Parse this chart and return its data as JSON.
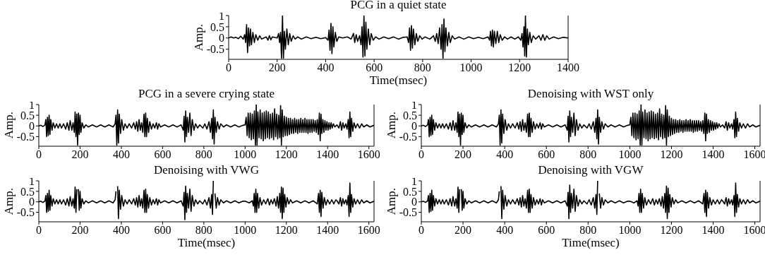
{
  "chart_data": [
    {
      "type": "line",
      "title": "PCG in a quiet state",
      "xlabel": "Time(msec)",
      "ylabel": "Amp.",
      "xlim": [
        0,
        1400
      ],
      "xticks": [
        0,
        200,
        400,
        600,
        800,
        1000,
        1200,
        1400
      ],
      "ylim": [
        -0.95,
        1
      ],
      "yticks": [
        -0.5,
        0,
        0.5,
        1
      ],
      "series": [
        {
          "color": "#000000",
          "x": [
            0,
            10,
            20,
            30,
            40,
            50,
            60,
            66,
            70,
            74,
            78,
            82,
            86,
            90,
            94,
            100,
            106,
            112,
            120,
            128,
            136,
            145,
            155,
            162,
            168,
            174,
            180,
            200,
            206,
            210,
            214,
            218,
            222,
            226,
            230,
            234,
            240,
            246,
            252,
            258,
            266,
            274,
            285,
            300,
            320,
            340,
            360,
            380,
            400,
            410,
            414,
            418,
            422,
            426,
            430,
            434,
            440,
            446,
            454,
            470,
            490,
            505,
            515,
            520,
            526,
            532,
            540,
            546,
            550,
            554,
            558,
            562,
            566,
            570,
            576,
            582,
            588,
            596,
            606,
            620,
            640,
            660,
            680,
            700,
            720,
            736,
            742,
            746,
            750,
            754,
            758,
            762,
            768,
            774,
            780,
            788,
            798,
            810,
            830,
            845,
            852,
            858,
            864,
            870,
            876,
            880,
            884,
            888,
            892,
            896,
            902,
            908,
            914,
            922,
            932,
            950,
            970,
            990,
            1010,
            1030,
            1050,
            1070,
            1076,
            1080,
            1084,
            1088,
            1092,
            1096,
            1102,
            1108,
            1114,
            1120,
            1128,
            1138,
            1150,
            1165,
            1180,
            1195,
            1205,
            1210,
            1214,
            1218,
            1221,
            1224,
            1228,
            1232,
            1236,
            1242,
            1248,
            1256,
            1266,
            1280,
            1288,
            1296,
            1304,
            1312,
            1322,
            1340,
            1360,
            1380,
            1400
          ],
          "values": [
            0,
            0.05,
            0,
            0.03,
            -0.03,
            0.08,
            -0.05,
            0.15,
            -0.2,
            0.6,
            -0.65,
            0.45,
            -0.35,
            0.4,
            -0.3,
            0.25,
            -0.2,
            0.15,
            -0.1,
            0.1,
            -0.05,
            0,
            0.05,
            -0.1,
            0.1,
            -0.08,
            0.05,
            0,
            0.2,
            -0.2,
            0.25,
            -0.9,
            1,
            -0.9,
            0.3,
            -0.5,
            0.4,
            -0.3,
            0.2,
            -0.15,
            0.1,
            -0.05,
            0.05,
            -0.05,
            0.05,
            -0.03,
            0.03,
            -0.03,
            0.02,
            -0.1,
            0.35,
            -0.55,
            0.65,
            -0.7,
            0.5,
            -0.4,
            0.25,
            -0.15,
            0.05,
            0,
            0.05,
            -0.05,
            0.2,
            -0.2,
            0.15,
            -0.15,
            0.1,
            -0.3,
            0.5,
            -0.85,
            1,
            -0.8,
            0.7,
            -0.5,
            0.4,
            -0.3,
            0.2,
            -0.1,
            0.05,
            -0.05,
            0.05,
            -0.03,
            0.05,
            -0.05,
            0.03,
            0.05,
            -0.2,
            0.45,
            -0.55,
            0.55,
            -0.45,
            0.4,
            -0.3,
            0.2,
            -0.15,
            0.1,
            -0.05,
            0.05,
            -0.05,
            0.1,
            -0.15,
            0.2,
            -0.25,
            0.45,
            -0.5,
            0.6,
            -0.9,
            0.85,
            -0.6,
            0.45,
            -0.35,
            0.25,
            -0.2,
            0.1,
            -0.05,
            0.05,
            -0.05,
            0.05,
            -0.03,
            0.03,
            -0.03,
            0.05,
            -0.1,
            0.3,
            -0.35,
            0.35,
            -0.4,
            0.3,
            -0.25,
            0.3,
            -0.2,
            0.15,
            -0.1,
            0.05,
            -0.05,
            0.05,
            -0.05,
            0.05,
            -0.1,
            0.2,
            -0.4,
            0.5,
            -0.8,
            1,
            -0.85,
            0.4,
            -0.3,
            0.25,
            -0.2,
            0.1,
            -0.05,
            0.1,
            -0.1,
            0.15,
            -0.1,
            0.1,
            -0.05,
            0.05,
            -0.03,
            0.03,
            0
          ]
        }
      ]
    },
    {
      "type": "line",
      "title": "PCG in a severe crying state",
      "ylabel": "Amp.",
      "xlim": [
        0,
        1625
      ],
      "xticks": [
        0,
        200,
        400,
        600,
        800,
        1000,
        1200,
        1400,
        1600
      ],
      "ylim": [
        -0.95,
        1
      ],
      "yticks": [
        -0.5,
        0,
        0.5,
        1
      ],
      "series": [
        {
          "color": "#000000",
          "x": [
            0,
            10,
            20,
            30,
            34,
            38,
            42,
            46,
            50,
            54,
            58,
            64,
            70,
            78,
            86,
            94,
            102,
            110,
            120,
            130,
            138,
            146,
            152,
            160,
            166,
            172,
            176,
            180,
            184,
            188,
            192,
            196,
            200,
            204,
            210,
            218,
            228,
            240,
            260,
            280,
            300,
            320,
            340,
            360,
            370,
            374,
            378,
            382,
            386,
            390,
            396,
            402,
            410,
            418,
            428,
            438,
            450,
            460,
            468,
            474,
            480,
            486,
            492,
            498,
            504,
            510,
            514,
            518,
            522,
            526,
            532,
            538,
            546,
            554,
            562,
            570,
            576,
            582,
            590,
            610,
            630,
            650,
            670,
            690,
            700,
            704,
            708,
            712,
            716,
            720,
            726,
            732,
            738,
            744,
            752,
            760,
            770,
            780,
            795,
            805,
            815,
            825,
            832,
            838,
            842,
            846,
            850,
            854,
            860,
            866,
            874,
            882,
            895,
            910,
            930,
            950,
            970,
            990,
            1000,
            1005,
            1010,
            1015,
            1020,
            1025,
            1030,
            1035,
            1040,
            1045,
            1050,
            1054,
            1058,
            1062,
            1068,
            1073,
            1078,
            1083,
            1088,
            1093,
            1098,
            1103,
            1108,
            1113,
            1118,
            1123,
            1128,
            1133,
            1138,
            1143,
            1148,
            1153,
            1158,
            1163,
            1168,
            1172,
            1176,
            1180,
            1185,
            1190,
            1195,
            1200,
            1205,
            1210,
            1215,
            1220,
            1225,
            1230,
            1235,
            1240,
            1245,
            1250,
            1255,
            1260,
            1265,
            1270,
            1275,
            1280,
            1285,
            1290,
            1295,
            1300,
            1305,
            1310,
            1315,
            1320,
            1325,
            1330,
            1335,
            1340,
            1345,
            1350,
            1355,
            1360,
            1364,
            1368,
            1372,
            1377,
            1382,
            1387,
            1392,
            1397,
            1402,
            1407,
            1412,
            1417,
            1422,
            1428,
            1435,
            1445,
            1455,
            1462,
            1468,
            1474,
            1480,
            1488,
            1494,
            1500,
            1504,
            1508,
            1512,
            1516,
            1522,
            1528,
            1536,
            1545,
            1555,
            1565,
            1575,
            1590,
            1605,
            1625
          ],
          "values": [
            0,
            0.03,
            -0.03,
            0.05,
            0.3,
            -0.5,
            0.4,
            -0.45,
            0.5,
            -0.4,
            0.3,
            -0.2,
            0.15,
            -0.1,
            0.1,
            -0.1,
            0.1,
            -0.1,
            0.1,
            -0.15,
            0.15,
            -0.2,
            0.25,
            -0.2,
            0.15,
            -0.3,
            0.65,
            -0.5,
            0.55,
            -0.9,
            0.6,
            -0.4,
            0.5,
            -0.3,
            0.15,
            -0.1,
            0.05,
            -0.05,
            0.05,
            -0.05,
            0.05,
            -0.05,
            0.05,
            -0.05,
            0.1,
            0.5,
            -0.9,
            0.75,
            -0.8,
            0.55,
            -0.35,
            0.3,
            -0.2,
            0.1,
            -0.1,
            0.1,
            -0.1,
            0.15,
            -0.15,
            0.2,
            -0.25,
            0.3,
            -0.2,
            0.15,
            -0.3,
            0.55,
            -0.5,
            0.6,
            -0.5,
            0.35,
            -0.3,
            0.2,
            -0.15,
            0.1,
            -0.1,
            0.15,
            -0.15,
            0.1,
            -0.05,
            0.05,
            -0.05,
            0.05,
            -0.05,
            0.05,
            -0.2,
            0.45,
            -0.75,
            0.7,
            -0.5,
            0.4,
            -0.3,
            0.6,
            -0.45,
            0.3,
            -0.2,
            0.1,
            -0.1,
            0.05,
            -0.1,
            0.1,
            -0.15,
            0.2,
            -0.3,
            0.35,
            -0.6,
            0.75,
            -0.85,
            0.4,
            -0.3,
            0.2,
            -0.15,
            0.1,
            -0.05,
            0.05,
            -0.05,
            0.05,
            -0.05,
            0.03,
            0.05,
            0.4,
            -0.45,
            0.6,
            -0.55,
            0.6,
            -0.65,
            0.55,
            -0.6,
            0.7,
            -0.9,
            1,
            -0.9,
            0.65,
            -0.55,
            0.75,
            -0.6,
            0.6,
            -0.7,
            0.65,
            -0.6,
            0.7,
            -0.55,
            0.65,
            -0.6,
            0.55,
            -0.55,
            0.6,
            -0.65,
            0.8,
            -0.5,
            0.55,
            -0.6,
            0.5,
            -0.55,
            0.95,
            -0.9,
            0.75,
            -0.5,
            0.45,
            -0.45,
            0.4,
            -0.45,
            0.35,
            -0.4,
            0.35,
            -0.35,
            0.3,
            -0.35,
            0.35,
            -0.3,
            0.3,
            -0.35,
            0.3,
            -0.3,
            0.35,
            -0.3,
            0.3,
            -0.3,
            0.35,
            -0.3,
            0.3,
            -0.35,
            0.3,
            -0.3,
            0.3,
            -0.3,
            0.3,
            -0.25,
            0.25,
            -0.3,
            0.3,
            -0.4,
            0.6,
            -0.7,
            0.55,
            -0.35,
            0.3,
            -0.3,
            0.25,
            -0.2,
            0.2,
            -0.2,
            0.15,
            -0.15,
            0.15,
            -0.1,
            0.1,
            -0.05,
            0.05,
            -0.1,
            0.2,
            -0.2,
            0.15,
            -0.1,
            0.1,
            -0.15,
            0.3,
            -0.55,
            0.65,
            -0.5,
            0.35,
            -0.25,
            0.15,
            -0.1,
            0.1,
            -0.1,
            0.1,
            -0.05,
            0.05,
            -0.05,
            0.03
          ]
        }
      ]
    },
    {
      "type": "line",
      "title": "Denoising with WST only",
      "ylabel": "Amp.",
      "xlim": [
        0,
        1625
      ],
      "xticks": [
        0,
        200,
        400,
        600,
        800,
        1000,
        1200,
        1400,
        1600
      ],
      "ylim": [
        -0.95,
        1
      ],
      "yticks": [
        -0.5,
        0,
        0.5,
        1
      ],
      "series": [
        {
          "color": "#000000",
          "x": [
            0,
            10,
            20,
            30,
            34,
            38,
            42,
            46,
            50,
            54,
            58,
            64,
            70,
            78,
            86,
            94,
            102,
            110,
            120,
            130,
            138,
            146,
            152,
            160,
            166,
            172,
            176,
            180,
            184,
            188,
            192,
            196,
            200,
            204,
            210,
            218,
            228,
            240,
            260,
            280,
            300,
            320,
            340,
            360,
            370,
            374,
            378,
            382,
            386,
            390,
            396,
            402,
            410,
            418,
            428,
            438,
            450,
            460,
            468,
            474,
            480,
            486,
            492,
            498,
            504,
            510,
            514,
            518,
            522,
            526,
            532,
            538,
            546,
            554,
            562,
            570,
            576,
            582,
            590,
            610,
            630,
            650,
            670,
            690,
            700,
            704,
            708,
            712,
            716,
            720,
            726,
            732,
            738,
            744,
            752,
            760,
            770,
            780,
            795,
            805,
            815,
            825,
            832,
            838,
            842,
            846,
            850,
            854,
            860,
            866,
            874,
            882,
            895,
            910,
            930,
            950,
            970,
            990,
            1000,
            1005,
            1010,
            1015,
            1020,
            1025,
            1030,
            1035,
            1040,
            1045,
            1050,
            1054,
            1058,
            1062,
            1068,
            1073,
            1078,
            1083,
            1088,
            1093,
            1098,
            1103,
            1108,
            1113,
            1118,
            1123,
            1128,
            1133,
            1138,
            1143,
            1148,
            1153,
            1158,
            1163,
            1168,
            1172,
            1176,
            1180,
            1185,
            1190,
            1195,
            1200,
            1205,
            1210,
            1215,
            1220,
            1225,
            1230,
            1235,
            1240,
            1245,
            1250,
            1255,
            1260,
            1265,
            1270,
            1275,
            1280,
            1285,
            1290,
            1295,
            1300,
            1305,
            1310,
            1315,
            1320,
            1325,
            1330,
            1335,
            1340,
            1345,
            1350,
            1355,
            1360,
            1364,
            1368,
            1372,
            1377,
            1382,
            1387,
            1392,
            1397,
            1402,
            1407,
            1412,
            1417,
            1422,
            1428,
            1435,
            1445,
            1455,
            1462,
            1468,
            1474,
            1480,
            1488,
            1494,
            1500,
            1504,
            1508,
            1512,
            1516,
            1522,
            1528,
            1536,
            1545,
            1555,
            1565,
            1575,
            1590,
            1605,
            1625
          ],
          "values": [
            0,
            0.03,
            -0.03,
            0.05,
            0.3,
            -0.5,
            0.4,
            -0.45,
            0.5,
            -0.4,
            0.3,
            -0.2,
            0.15,
            -0.1,
            0.1,
            -0.1,
            0.1,
            -0.1,
            0.1,
            -0.15,
            0.15,
            -0.2,
            0.25,
            -0.2,
            0.15,
            -0.3,
            0.65,
            -0.5,
            0.55,
            -0.9,
            0.6,
            -0.4,
            0.5,
            -0.3,
            0.15,
            -0.1,
            0.05,
            -0.05,
            0.05,
            -0.05,
            0.05,
            -0.05,
            0.05,
            -0.05,
            0.1,
            0.5,
            -0.9,
            0.75,
            -0.8,
            0.55,
            -0.35,
            0.3,
            -0.2,
            0.1,
            -0.1,
            0.1,
            -0.1,
            0.15,
            -0.15,
            0.2,
            -0.25,
            0.3,
            -0.2,
            0.15,
            -0.3,
            0.55,
            -0.5,
            0.6,
            -0.5,
            0.35,
            -0.3,
            0.2,
            -0.15,
            0.1,
            -0.1,
            0.15,
            -0.15,
            0.1,
            -0.05,
            0.05,
            -0.05,
            0.05,
            -0.05,
            0.05,
            -0.2,
            0.45,
            -0.75,
            0.7,
            -0.5,
            0.4,
            -0.3,
            0.6,
            -0.45,
            0.3,
            -0.2,
            0.1,
            -0.1,
            0.05,
            -0.1,
            0.1,
            -0.15,
            0.2,
            -0.3,
            0.35,
            -0.6,
            0.75,
            -0.85,
            0.4,
            -0.3,
            0.2,
            -0.15,
            0.1,
            -0.05,
            0.05,
            -0.05,
            0.05,
            -0.05,
            0.03,
            0.05,
            0.4,
            -0.45,
            0.6,
            -0.55,
            0.6,
            -0.65,
            0.55,
            -0.6,
            0.7,
            -0.9,
            1,
            -0.9,
            0.65,
            -0.55,
            0.75,
            -0.6,
            0.6,
            -0.7,
            0.65,
            -0.6,
            0.7,
            -0.55,
            0.65,
            -0.6,
            0.55,
            -0.55,
            0.6,
            -0.65,
            0.8,
            -0.5,
            0.55,
            -0.6,
            0.5,
            -0.55,
            0.95,
            -0.9,
            0.75,
            -0.5,
            0.45,
            -0.45,
            0.35,
            -0.4,
            0.3,
            -0.35,
            0.3,
            -0.3,
            0.25,
            -0.3,
            0.3,
            -0.25,
            0.25,
            -0.3,
            0.25,
            -0.25,
            0.3,
            -0.25,
            0.25,
            -0.25,
            0.3,
            -0.25,
            0.25,
            -0.3,
            0.25,
            -0.25,
            0.25,
            -0.25,
            0.25,
            -0.2,
            0.2,
            -0.25,
            0.25,
            -0.35,
            0.6,
            -0.7,
            0.55,
            -0.35,
            0.3,
            -0.3,
            0.25,
            -0.2,
            0.2,
            -0.2,
            0.15,
            -0.15,
            0.15,
            -0.1,
            0.1,
            -0.05,
            0.05,
            -0.1,
            0.2,
            -0.2,
            0.15,
            -0.1,
            0.1,
            -0.15,
            0.3,
            -0.55,
            0.65,
            -0.5,
            0.35,
            -0.25,
            0.15,
            -0.1,
            0.1,
            -0.1,
            0.1,
            -0.05,
            0.05,
            -0.05,
            0.03
          ]
        }
      ]
    },
    {
      "type": "line",
      "title": "Denoising with VWG",
      "xlabel": "Time(msec)",
      "ylabel": "Amp.",
      "xlim": [
        0,
        1625
      ],
      "xticks": [
        0,
        200,
        400,
        600,
        800,
        1000,
        1200,
        1400,
        1600
      ],
      "ylim": [
        -0.95,
        1
      ],
      "yticks": [
        -0.5,
        0,
        0.5,
        1
      ],
      "series": [
        {
          "color": "#000000",
          "x": [
            0,
            10,
            20,
            30,
            34,
            38,
            42,
            46,
            50,
            54,
            58,
            64,
            70,
            78,
            86,
            94,
            102,
            110,
            120,
            130,
            138,
            146,
            152,
            160,
            166,
            172,
            176,
            180,
            184,
            188,
            192,
            196,
            200,
            204,
            210,
            218,
            228,
            240,
            260,
            280,
            300,
            320,
            340,
            360,
            370,
            374,
            378,
            382,
            386,
            390,
            396,
            402,
            410,
            418,
            428,
            438,
            450,
            460,
            468,
            474,
            480,
            486,
            492,
            498,
            504,
            510,
            514,
            518,
            522,
            526,
            532,
            538,
            546,
            554,
            562,
            570,
            576,
            582,
            590,
            610,
            630,
            650,
            670,
            690,
            700,
            704,
            708,
            712,
            716,
            720,
            726,
            732,
            738,
            744,
            752,
            760,
            770,
            780,
            795,
            805,
            815,
            825,
            832,
            838,
            842,
            846,
            850,
            854,
            860,
            866,
            874,
            882,
            895,
            910,
            930,
            950,
            970,
            990,
            1000,
            1020,
            1035,
            1040,
            1044,
            1048,
            1052,
            1056,
            1060,
            1066,
            1072,
            1080,
            1090,
            1100,
            1110,
            1118,
            1126,
            1134,
            1142,
            1150,
            1156,
            1162,
            1168,
            1172,
            1176,
            1180,
            1184,
            1188,
            1192,
            1198,
            1204,
            1212,
            1220,
            1230,
            1250,
            1270,
            1290,
            1310,
            1330,
            1350,
            1356,
            1360,
            1364,
            1368,
            1372,
            1378,
            1384,
            1392,
            1400,
            1410,
            1420,
            1430,
            1440,
            1445,
            1455,
            1462,
            1468,
            1474,
            1480,
            1488,
            1494,
            1500,
            1504,
            1508,
            1512,
            1516,
            1522,
            1528,
            1536,
            1545,
            1555,
            1565,
            1575,
            1590,
            1605,
            1625
          ],
          "values": [
            0,
            0.03,
            -0.03,
            0.05,
            0.3,
            -0.5,
            0.4,
            -0.45,
            0.55,
            -0.4,
            0.3,
            -0.2,
            0.15,
            -0.1,
            0.1,
            -0.1,
            0.1,
            -0.1,
            0.1,
            -0.15,
            0.15,
            -0.2,
            0.25,
            -0.2,
            0.15,
            -0.3,
            0.7,
            -0.5,
            0.6,
            null,
            0.6,
            -0.4,
            0.5,
            -0.3,
            0.15,
            -0.1,
            0.05,
            -0.05,
            0.05,
            -0.05,
            0.05,
            -0.05,
            0.05,
            -0.05,
            0.1,
            0.5,
            null,
            0.75,
            -0.8,
            0.55,
            -0.35,
            0.3,
            -0.2,
            0.1,
            -0.1,
            0.1,
            -0.1,
            0.15,
            -0.15,
            0.2,
            -0.25,
            0.3,
            -0.2,
            0.15,
            -0.3,
            0.55,
            -0.5,
            0.6,
            -0.5,
            0.35,
            -0.3,
            0.2,
            -0.15,
            0.1,
            -0.1,
            0.15,
            -0.15,
            0.1,
            -0.05,
            0.05,
            -0.05,
            0.05,
            -0.05,
            0.05,
            -0.2,
            0.45,
            -0.85,
            0.75,
            -0.5,
            0.4,
            -0.3,
            0.6,
            -0.45,
            0.3,
            -0.2,
            0.1,
            -0.1,
            0.05,
            -0.1,
            0.1,
            -0.15,
            0.2,
            -0.3,
            0.35,
            -0.6,
            1,
            null,
            0.4,
            -0.3,
            0.2,
            -0.15,
            0.1,
            -0.05,
            0.05,
            -0.05,
            0.05,
            -0.05,
            0.03,
            0.03,
            -0.05,
            0.05,
            -0.2,
            0.4,
            -0.5,
            0.6,
            -0.5,
            0.4,
            -0.3,
            0.2,
            -0.15,
            0.1,
            -0.1,
            0.15,
            -0.15,
            0.1,
            -0.1,
            0.15,
            -0.2,
            0.25,
            -0.3,
            0.4,
            -0.5,
            0.7,
            -0.8,
            0.65,
            -0.5,
            0.35,
            -0.25,
            0.2,
            -0.1,
            0.1,
            -0.05,
            0.05,
            -0.05,
            0.05,
            -0.05,
            0.05,
            -0.1,
            0.4,
            -0.5,
            0.55,
            -0.7,
            0.45,
            -0.3,
            0.2,
            -0.15,
            0.1,
            -0.1,
            0.1,
            -0.1,
            0.1,
            0.05,
            -0.1,
            0.2,
            -0.2,
            0.15,
            -0.1,
            0.1,
            -0.15,
            0.3,
            -0.7,
            0.9,
            -0.5,
            0.35,
            -0.25,
            0.15,
            -0.1,
            0.1,
            -0.1,
            0.1,
            -0.05,
            0.05,
            -0.05,
            0.03
          ]
        }
      ]
    },
    {
      "type": "line",
      "title": "Denoising with VGW",
      "xlabel": "Time(msec)",
      "ylabel": "Amp.",
      "xlim": [
        0,
        1625
      ],
      "xticks": [
        0,
        200,
        400,
        600,
        800,
        1000,
        1200,
        1400,
        1600
      ],
      "ylim": [
        -0.95,
        1
      ],
      "yticks": [
        -0.5,
        0,
        0.5,
        1
      ],
      "series": [
        {
          "color": "#000000",
          "x": [
            0,
            10,
            20,
            30,
            34,
            38,
            42,
            46,
            50,
            54,
            58,
            64,
            70,
            78,
            86,
            94,
            102,
            110,
            120,
            130,
            138,
            146,
            152,
            160,
            166,
            172,
            176,
            180,
            184,
            188,
            192,
            196,
            200,
            204,
            210,
            218,
            228,
            240,
            260,
            280,
            300,
            320,
            340,
            360,
            370,
            374,
            378,
            382,
            386,
            390,
            396,
            402,
            410,
            418,
            428,
            438,
            450,
            460,
            468,
            474,
            480,
            486,
            492,
            498,
            504,
            510,
            514,
            518,
            522,
            526,
            532,
            538,
            546,
            554,
            562,
            570,
            576,
            582,
            590,
            610,
            630,
            650,
            670,
            690,
            700,
            704,
            708,
            712,
            716,
            720,
            726,
            732,
            738,
            744,
            752,
            760,
            770,
            780,
            795,
            805,
            815,
            825,
            832,
            838,
            842,
            846,
            850,
            854,
            860,
            866,
            874,
            882,
            895,
            910,
            930,
            950,
            970,
            990,
            1000,
            1020,
            1035,
            1040,
            1044,
            1048,
            1052,
            1056,
            1060,
            1066,
            1072,
            1080,
            1090,
            1100,
            1110,
            1118,
            1126,
            1134,
            1142,
            1150,
            1156,
            1162,
            1168,
            1172,
            1176,
            1180,
            1184,
            1188,
            1192,
            1198,
            1204,
            1212,
            1220,
            1230,
            1250,
            1270,
            1290,
            1310,
            1330,
            1350,
            1356,
            1360,
            1364,
            1368,
            1372,
            1378,
            1384,
            1392,
            1400,
            1410,
            1420,
            1430,
            1440,
            1445,
            1455,
            1462,
            1468,
            1474,
            1480,
            1488,
            1494,
            1500,
            1504,
            1508,
            1512,
            1516,
            1522,
            1528,
            1536,
            1545,
            1555,
            1565,
            1575,
            1590,
            1605,
            1625
          ],
          "values": [
            0,
            0.03,
            -0.03,
            0.05,
            0.3,
            -0.5,
            0.4,
            -0.45,
            0.55,
            -0.4,
            0.3,
            -0.2,
            0.15,
            -0.1,
            0.1,
            -0.1,
            0.1,
            -0.1,
            0.1,
            -0.15,
            0.15,
            -0.2,
            0.25,
            -0.2,
            0.15,
            -0.3,
            0.7,
            -0.5,
            0.6,
            null,
            0.6,
            -0.4,
            0.5,
            -0.3,
            0.15,
            -0.1,
            0.05,
            -0.05,
            0.05,
            -0.05,
            0.05,
            -0.05,
            0.05,
            -0.05,
            0.1,
            0.5,
            null,
            0.75,
            -0.8,
            0.55,
            -0.35,
            0.3,
            -0.2,
            0.1,
            -0.1,
            0.1,
            -0.1,
            0.15,
            -0.15,
            0.2,
            -0.25,
            0.3,
            -0.2,
            0.15,
            -0.3,
            0.55,
            -0.5,
            0.6,
            -0.5,
            0.35,
            -0.3,
            0.2,
            -0.15,
            0.1,
            -0.1,
            0.15,
            -0.15,
            0.1,
            -0.05,
            0.05,
            -0.05,
            0.05,
            -0.05,
            0.05,
            -0.2,
            0.45,
            -0.8,
            0.8,
            -0.5,
            0.4,
            -0.3,
            0.6,
            -0.45,
            0.3,
            -0.2,
            0.1,
            -0.1,
            0.05,
            -0.1,
            0.1,
            -0.15,
            0.2,
            -0.3,
            0.35,
            -0.6,
            1,
            null,
            0.4,
            -0.3,
            0.2,
            -0.15,
            0.1,
            -0.05,
            0.05,
            -0.05,
            0.05,
            -0.05,
            0.03,
            0.03,
            -0.05,
            0.05,
            -0.2,
            0.4,
            -0.5,
            0.6,
            -0.5,
            0.4,
            -0.3,
            0.2,
            -0.15,
            0.1,
            -0.1,
            0.15,
            -0.15,
            0.1,
            -0.1,
            0.15,
            -0.2,
            0.25,
            -0.3,
            0.4,
            -0.5,
            0.75,
            -0.8,
            0.65,
            -0.5,
            0.35,
            -0.25,
            0.2,
            -0.1,
            0.1,
            -0.05,
            0.05,
            -0.05,
            0.05,
            -0.05,
            0.05,
            -0.1,
            0.4,
            -0.5,
            0.55,
            -0.7,
            0.45,
            -0.3,
            0.2,
            -0.15,
            0.1,
            -0.1,
            0.1,
            -0.1,
            0.1,
            0.05,
            -0.1,
            0.2,
            -0.2,
            0.15,
            -0.1,
            0.1,
            -0.15,
            0.3,
            -0.7,
            0.9,
            -0.5,
            0.35,
            -0.25,
            0.15,
            -0.1,
            0.1,
            -0.1,
            0.1,
            -0.05,
            0.05,
            -0.05,
            0.03
          ]
        }
      ]
    }
  ]
}
